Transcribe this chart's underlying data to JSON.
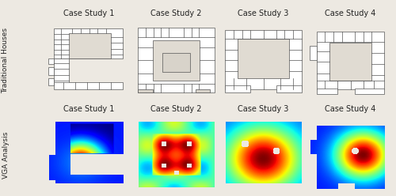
{
  "col_labels": [
    "Case Study 1",
    "Case Study 2",
    "Case Study 3",
    "Case Study 4"
  ],
  "row_labels": [
    "Traditional Houses",
    "VGA Analysis"
  ],
  "background_color": "#ede9e2",
  "grid_line_color": "#aaaaaa",
  "row_label_fontsize": 6.5,
  "col_label_fontsize": 7,
  "figure_width": 5.0,
  "figure_height": 2.48,
  "dpi": 100
}
